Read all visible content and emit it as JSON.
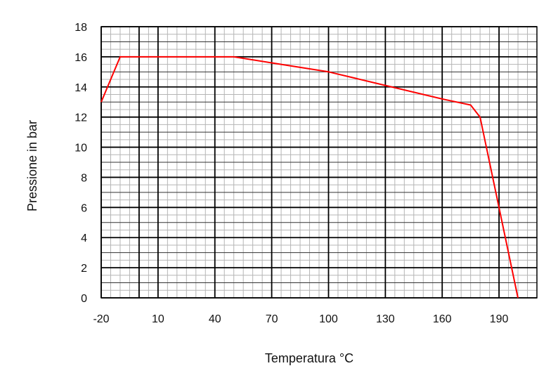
{
  "chart_data": {
    "type": "line",
    "xlabel": "Temperatura °C",
    "ylabel": "Pressione in bar",
    "xlim": [
      -20,
      210
    ],
    "ylim": [
      0,
      18
    ],
    "x_ticks": [
      -20,
      10,
      40,
      70,
      100,
      130,
      160,
      190
    ],
    "y_ticks": [
      0,
      2,
      4,
      6,
      8,
      10,
      12,
      14,
      16,
      18
    ],
    "grid": true,
    "series": [
      {
        "color": "#ff0000",
        "points": [
          {
            "x": -20,
            "y": 13
          },
          {
            "x": -10,
            "y": 16
          },
          {
            "x": 50,
            "y": 16
          },
          {
            "x": 70,
            "y": 15.6
          },
          {
            "x": 85,
            "y": 15.3
          },
          {
            "x": 100,
            "y": 15
          },
          {
            "x": 130,
            "y": 14.1
          },
          {
            "x": 160,
            "y": 13.2
          },
          {
            "x": 175,
            "y": 12.8
          },
          {
            "x": 180,
            "y": 12
          },
          {
            "x": 200,
            "y": 0
          }
        ]
      }
    ]
  }
}
